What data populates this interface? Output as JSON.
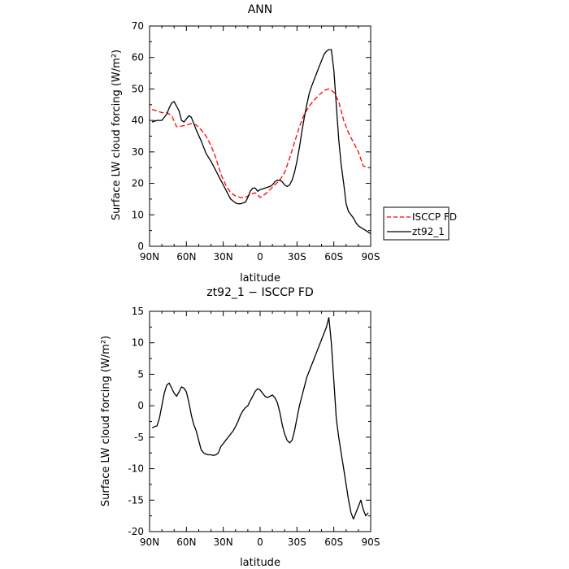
{
  "chart_data": [
    {
      "type": "line",
      "title": "ANN",
      "xlabel": "latitude",
      "ylabel": "Surface LW cloud forcing (W/m²)",
      "xlim": [
        90,
        -90
      ],
      "ylim": [
        0,
        70
      ],
      "x_ticks": [
        90,
        60,
        30,
        0,
        -30,
        -60,
        -90
      ],
      "x_tick_labels": [
        "90N",
        "60N",
        "30N",
        "0",
        "30S",
        "60S",
        "90S"
      ],
      "y_ticks": [
        0,
        10,
        20,
        30,
        40,
        50,
        60,
        70
      ],
      "legend_position": "right",
      "series": [
        {
          "name": "ISCCP FD",
          "color": "#ff0000",
          "style": "dashed",
          "x": [
            88,
            84,
            80,
            76,
            72,
            68,
            64,
            60,
            56,
            52,
            48,
            44,
            40,
            36,
            32,
            28,
            24,
            20,
            16,
            12,
            8,
            4,
            2,
            0,
            -4,
            -8,
            -12,
            -16,
            -20,
            -24,
            -28,
            -32,
            -36,
            -40,
            -44,
            -48,
            -52,
            -56,
            -60,
            -64,
            -68,
            -72,
            -76,
            -80,
            -84,
            -88
          ],
          "values": [
            43.5,
            43.0,
            42.5,
            42.5,
            41.5,
            38.0,
            38.2,
            38.5,
            39.0,
            38.5,
            37.0,
            35.0,
            32.0,
            28.0,
            23.0,
            19.5,
            17.0,
            16.0,
            15.5,
            15.5,
            16.5,
            17.0,
            16.5,
            15.5,
            16.5,
            18.0,
            19.5,
            21.0,
            23.5,
            28.0,
            33.0,
            38.0,
            42.0,
            44.5,
            46.5,
            48.0,
            49.5,
            50.0,
            49.0,
            46.0,
            40.0,
            36.0,
            33.0,
            30.0,
            25.5,
            25.0
          ]
        },
        {
          "name": "zt92_1",
          "color": "#000000",
          "style": "solid",
          "x": [
            88,
            84,
            80,
            76,
            74,
            72,
            70,
            66,
            64,
            62,
            60,
            58,
            56,
            52,
            48,
            44,
            40,
            36,
            32,
            30,
            28,
            24,
            20,
            18,
            16,
            12,
            10,
            8,
            6,
            4,
            2,
            0,
            -2,
            -4,
            -8,
            -10,
            -12,
            -14,
            -16,
            -18,
            -20,
            -22,
            -24,
            -26,
            -28,
            -30,
            -32,
            -34,
            -36,
            -38,
            -40,
            -42,
            -44,
            -46,
            -48,
            -50,
            -52,
            -54,
            -56,
            -58,
            -60,
            -62,
            -64,
            -66,
            -68,
            -70,
            -72,
            -74,
            -76,
            -78,
            -80,
            -82,
            -84,
            -86,
            -88,
            -90
          ],
          "values": [
            39.5,
            40.0,
            40.0,
            42.0,
            44.0,
            45.5,
            46.0,
            43.0,
            40.0,
            39.5,
            40.5,
            41.5,
            41.0,
            37.0,
            33.5,
            29.5,
            27.0,
            24.0,
            21.0,
            19.5,
            18.0,
            15.0,
            13.8,
            13.5,
            13.5,
            14.0,
            15.5,
            17.5,
            18.5,
            18.5,
            17.5,
            18.0,
            18.2,
            18.5,
            19.0,
            19.5,
            20.5,
            21.0,
            21.0,
            20.5,
            19.5,
            19.0,
            19.5,
            21.0,
            23.5,
            27.0,
            31.5,
            36.5,
            41.0,
            45.0,
            48.5,
            51.0,
            53.0,
            55.0,
            57.0,
            59.0,
            61.0,
            62.0,
            62.5,
            62.5,
            56.0,
            45.0,
            34.0,
            26.0,
            20.0,
            13.5,
            11.0,
            10.0,
            9.0,
            7.5,
            6.5,
            6.0,
            5.5,
            5.0,
            4.5,
            4.0
          ]
        }
      ]
    },
    {
      "type": "line",
      "title": "zt92_1 − ISCCP FD",
      "xlabel": "latitude",
      "ylabel": "Surface LW cloud forcing (W/m²)",
      "xlim": [
        90,
        -90
      ],
      "ylim": [
        -20,
        15
      ],
      "x_ticks": [
        90,
        60,
        30,
        0,
        -30,
        -60,
        -90
      ],
      "x_tick_labels": [
        "90N",
        "60N",
        "30N",
        "0",
        "30S",
        "60S",
        "90S"
      ],
      "y_ticks": [
        -20,
        -15,
        -10,
        -5,
        0,
        5,
        10,
        15
      ],
      "series": [
        {
          "color": "#000000",
          "style": "solid",
          "x": [
            88,
            84,
            82,
            80,
            78,
            76,
            74,
            72,
            70,
            68,
            66,
            64,
            62,
            60,
            58,
            56,
            54,
            52,
            50,
            48,
            46,
            44,
            42,
            40,
            38,
            36,
            34,
            32,
            30,
            28,
            26,
            24,
            22,
            20,
            18,
            16,
            14,
            12,
            10,
            8,
            6,
            4,
            2,
            0,
            -2,
            -4,
            -6,
            -8,
            -10,
            -12,
            -14,
            -16,
            -18,
            -20,
            -22,
            -24,
            -26,
            -28,
            -30,
            -32,
            -34,
            -36,
            -38,
            -40,
            -42,
            -44,
            -46,
            -48,
            -50,
            -52,
            -54,
            -56,
            -58,
            -60,
            -62,
            -64,
            -66,
            -68,
            -70,
            -72,
            -74,
            -76,
            -78,
            -80,
            -82,
            -84,
            -86,
            -88
          ],
          "values": [
            -3.5,
            -3.2,
            -2.0,
            0.0,
            2.0,
            3.3,
            3.6,
            2.8,
            2.0,
            1.5,
            2.2,
            3.0,
            2.8,
            2.2,
            0.5,
            -1.5,
            -3.0,
            -4.0,
            -5.5,
            -7.0,
            -7.5,
            -7.7,
            -7.8,
            -7.8,
            -7.9,
            -7.8,
            -7.5,
            -6.5,
            -6.0,
            -5.5,
            -5.0,
            -4.5,
            -4.0,
            -3.3,
            -2.5,
            -1.5,
            -0.8,
            -0.3,
            0.0,
            0.8,
            1.5,
            2.3,
            2.7,
            2.5,
            2.0,
            1.5,
            1.3,
            1.5,
            1.7,
            1.3,
            0.5,
            -1.0,
            -3.0,
            -4.5,
            -5.5,
            -5.9,
            -5.5,
            -4.0,
            -2.0,
            0.0,
            1.5,
            3.0,
            4.5,
            5.5,
            6.5,
            7.5,
            8.5,
            9.5,
            10.5,
            11.5,
            12.5,
            14.0,
            10.0,
            4.0,
            -2.0,
            -5.0,
            -7.5,
            -10.0,
            -12.5,
            -15.0,
            -17.0,
            -18.0,
            -17.0,
            -16.0,
            -15.0,
            -16.5,
            -17.5,
            -17.0
          ]
        }
      ]
    }
  ]
}
